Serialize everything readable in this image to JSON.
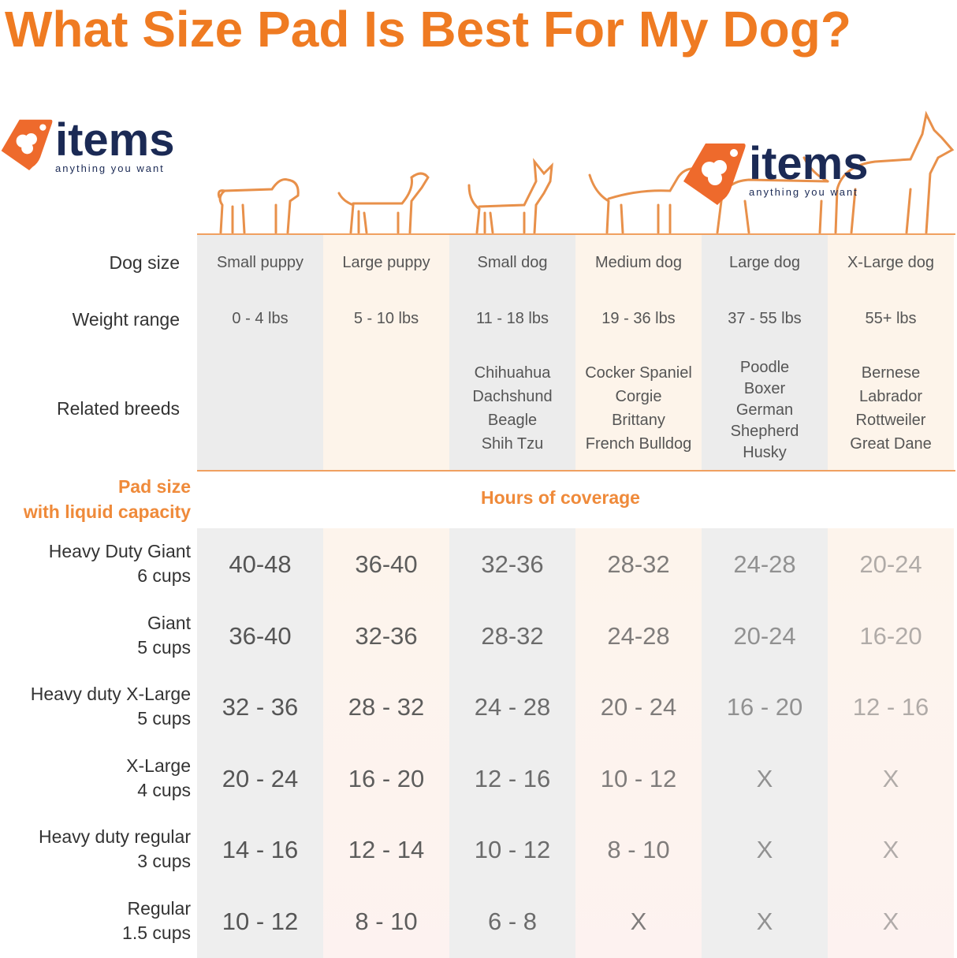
{
  "title": "What Size Pad Is Best For My Dog?",
  "logo": {
    "word": "items",
    "tagline": "anything you want"
  },
  "row_labels": {
    "dog_size": "Dog size",
    "weight": "Weight range",
    "breeds": "Related breeds"
  },
  "pad_header": {
    "line1": "Pad size",
    "line2": "with liquid capacity",
    "coverage": "Hours of coverage"
  },
  "columns": [
    {
      "size": "Small puppy",
      "weight": "0 - 4 lbs",
      "breeds": []
    },
    {
      "size": "Large puppy",
      "weight": "5 - 10 lbs",
      "breeds": []
    },
    {
      "size": "Small dog",
      "weight": "11 - 18 lbs",
      "breeds": [
        "Chihuahua",
        "Dachshund",
        "Beagle",
        "Shih Tzu"
      ]
    },
    {
      "size": "Medium dog",
      "weight": "19 - 36 lbs",
      "breeds": [
        "Cocker Spaniel",
        "Corgie",
        "Brittany",
        "French Bulldog"
      ]
    },
    {
      "size": "Large dog",
      "weight": "37 - 55 lbs",
      "breeds": [
        "Poodle",
        "Boxer",
        "German",
        "Shepherd",
        "Husky"
      ]
    },
    {
      "size": "X-Large dog",
      "weight": "55+ lbs",
      "breeds": [
        "Bernese",
        "Labrador",
        "Rottweiler",
        "Great Dane"
      ]
    }
  ],
  "pads": [
    {
      "name": "Heavy Duty Giant",
      "cups": "6 cups",
      "hours": [
        "40-48",
        "36-40",
        "32-36",
        "28-32",
        "24-28",
        "20-24"
      ]
    },
    {
      "name": "Giant",
      "cups": "5 cups",
      "hours": [
        "36-40",
        "32-36",
        "28-32",
        "24-28",
        "20-24",
        "16-20"
      ]
    },
    {
      "name": "Heavy duty X-Large",
      "cups": "5 cups",
      "hours": [
        "32 - 36",
        "28 - 32",
        "24 - 28",
        "20 - 24",
        "16 - 20",
        "12 - 16"
      ]
    },
    {
      "name": "X-Large",
      "cups": "4 cups",
      "hours": [
        "20 - 24",
        "16 - 20",
        "12 - 16",
        "10 - 12",
        "X",
        "X"
      ]
    },
    {
      "name": "Heavy duty regular",
      "cups": "3 cups",
      "hours": [
        "14 - 16",
        "12 - 14",
        "10 - 12",
        "8 - 10",
        "X",
        "X"
      ]
    },
    {
      "name": "Regular",
      "cups": "1.5 cups",
      "hours": [
        "10 - 12",
        "8 - 10",
        "6 - 8",
        "X",
        "X",
        "X"
      ]
    }
  ],
  "colors": {
    "accent": "#ef7b22",
    "logo_navy": "#1b2a55",
    "logo_orange": "#ee6a2c"
  }
}
